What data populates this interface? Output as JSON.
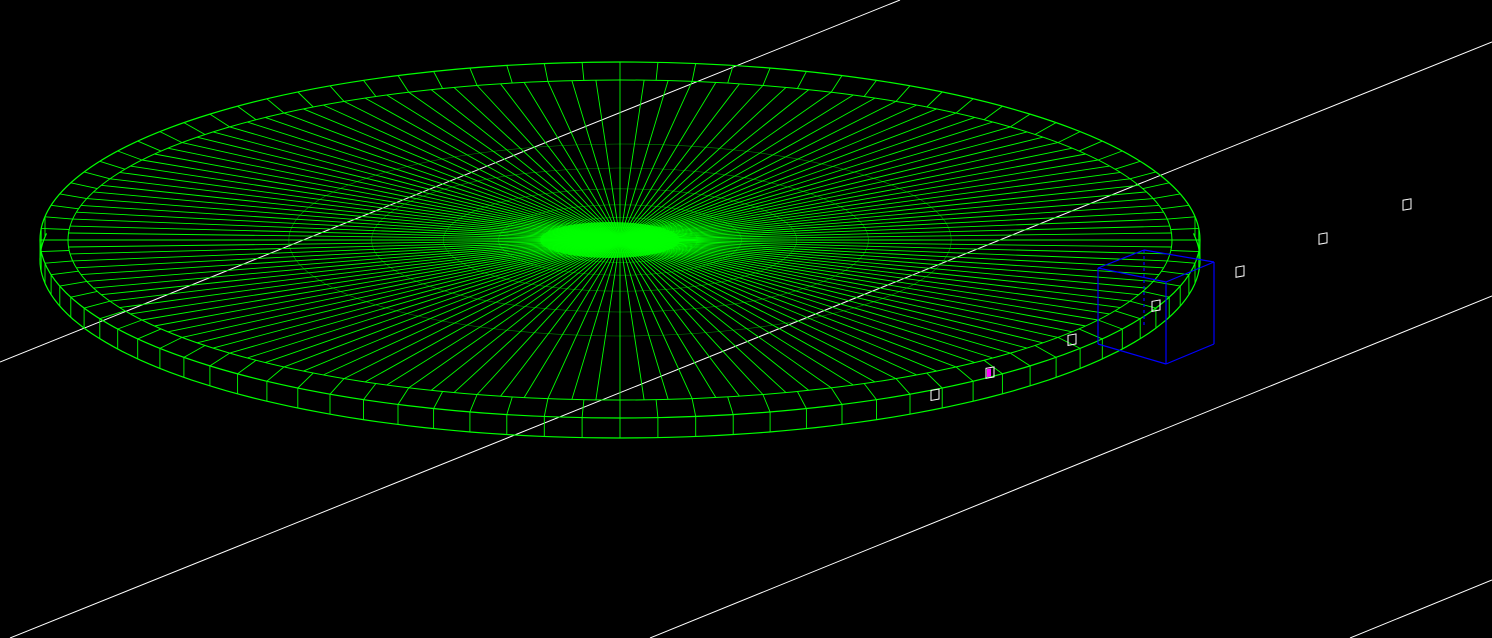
{
  "viewport": {
    "background": "#000000",
    "disk_color": "#00ff00",
    "guide_line_color": "#ffffff",
    "box_color": "#0000ff",
    "marker_color": "#ffffff",
    "highlight_marker_color": "#ff00ff",
    "disk_spoke_count": 144,
    "marker_count": 7,
    "guide_line_count": 4
  }
}
